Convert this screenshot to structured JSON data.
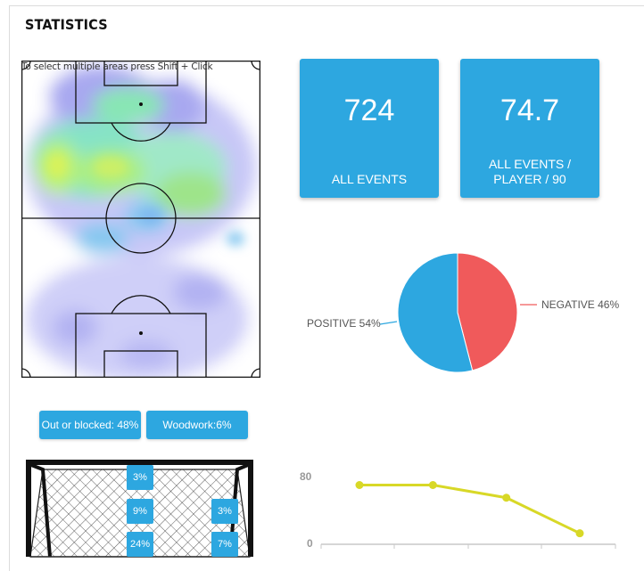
{
  "header": {
    "title": "STATISTICS"
  },
  "heatmap": {
    "hint": "To select multiple areas press Shift + Click"
  },
  "tiles": [
    {
      "value": "724",
      "label": "ALL EVENTS"
    },
    {
      "value": "74.7",
      "label_line1": "ALL EVENTS /",
      "label_line2": "PLAYER / 90"
    }
  ],
  "pie": {
    "positive_label": "POSITIVE 54%",
    "negative_label": "NEGATIVE 46%",
    "colors": {
      "positive": "#2da7e0",
      "negative": "#f05a5b"
    }
  },
  "shots": {
    "out_or_blocked": "Out or blocked: 48%",
    "woodwork": "Woodwork:6%",
    "zones": {
      "top_center": "3%",
      "middle_center": "9%",
      "middle_right": "3%",
      "bottom_center": "24%",
      "bottom_right": "7%"
    }
  },
  "chart_data": {
    "type": "line",
    "x": [
      1,
      2,
      3,
      4
    ],
    "values": [
      70,
      70,
      55,
      13
    ],
    "ylim": [
      0,
      80
    ],
    "ytick_labels": [
      "80",
      "0"
    ],
    "color": "#d8d827"
  },
  "colors": {
    "accent": "#2da7e0"
  }
}
